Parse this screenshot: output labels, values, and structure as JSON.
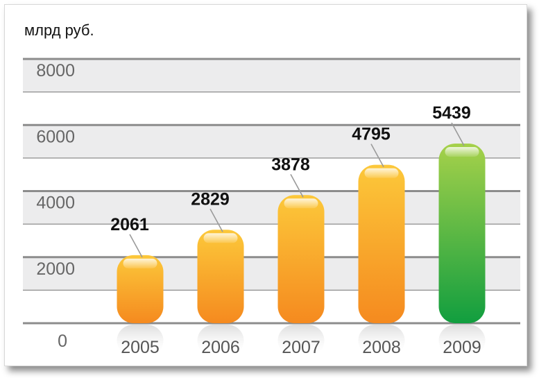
{
  "chart_data": {
    "type": "bar",
    "unit_label": "млрд руб.",
    "categories": [
      "2005",
      "2006",
      "2007",
      "2008",
      "2009"
    ],
    "values": [
      2061,
      2829,
      3878,
      4795,
      5439
    ],
    "value_labels": [
      "2061",
      "2829",
      "3878",
      "4795",
      "5439"
    ],
    "yticks": [
      "0",
      "2000",
      "4000",
      "6000",
      "8000"
    ],
    "ylim": [
      0,
      8000
    ],
    "grid": true,
    "colors": {
      "bar_orange_top": "#fcc83a",
      "bar_orange_bottom": "#f58a1f",
      "bar_green_top": "#a6d14a",
      "bar_green_bottom": "#119e3f",
      "band_shade": "#ececed",
      "grid_line": "#8c8c8c",
      "axis_text": "#666666",
      "label_text": "#111111"
    },
    "highlight_index": 4
  }
}
